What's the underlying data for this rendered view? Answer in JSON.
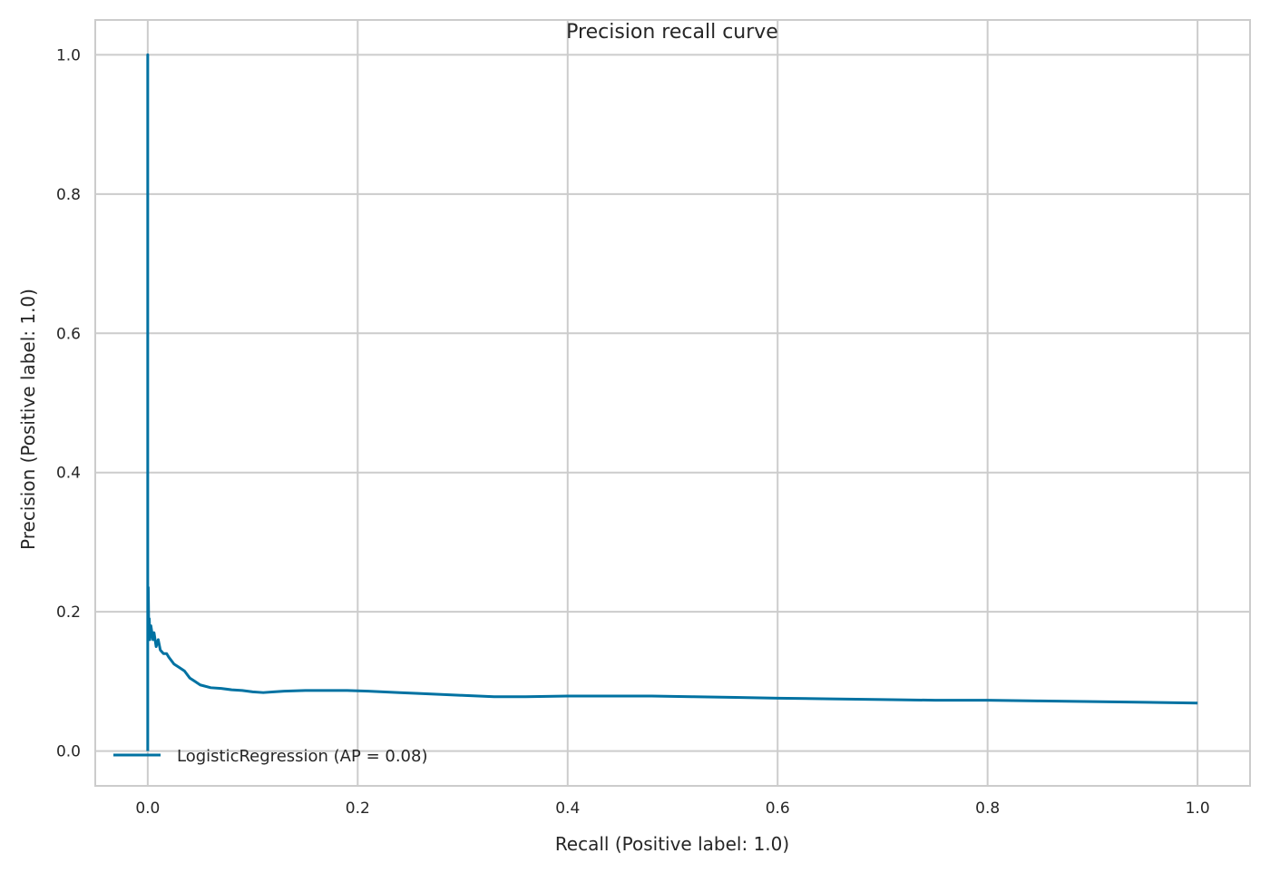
{
  "chart_data": {
    "type": "line",
    "title": "Precision recall curve",
    "xlabel": "Recall (Positive label: 1.0)",
    "ylabel": "Precision (Positive label: 1.0)",
    "xlim": [
      -0.05,
      1.05
    ],
    "ylim": [
      -0.05,
      1.05
    ],
    "xticks": [
      0.0,
      0.2,
      0.4,
      0.6,
      0.8,
      1.0
    ],
    "xtick_labels": [
      "0.0",
      "0.2",
      "0.4",
      "0.6",
      "0.8",
      "1.0"
    ],
    "yticks": [
      0.0,
      0.2,
      0.4,
      0.6,
      0.8,
      1.0
    ],
    "ytick_labels": [
      "0.0",
      "0.2",
      "0.4",
      "0.6",
      "0.8",
      "1.0"
    ],
    "grid": true,
    "legend_position": "lower-left",
    "series": [
      {
        "name": "LogisticRegression (AP = 0.08)",
        "color": "#0072a2",
        "x": [
          0.0,
          0.0,
          0.0,
          0.0,
          0.0,
          0.0005,
          0.001,
          0.0015,
          0.002,
          0.003,
          0.004,
          0.005,
          0.006,
          0.008,
          0.01,
          0.012,
          0.015,
          0.018,
          0.02,
          0.025,
          0.03,
          0.035,
          0.04,
          0.045,
          0.05,
          0.06,
          0.07,
          0.08,
          0.09,
          0.1,
          0.11,
          0.12,
          0.13,
          0.15,
          0.17,
          0.19,
          0.21,
          0.24,
          0.27,
          0.3,
          0.33,
          0.36,
          0.4,
          0.44,
          0.48,
          0.52,
          0.56,
          0.6,
          0.65,
          0.7,
          0.75,
          0.8,
          0.85,
          0.9,
          0.95,
          1.0
        ],
        "y": [
          0.0,
          1.0,
          0.5,
          0.23,
          0.2,
          0.235,
          0.17,
          0.19,
          0.16,
          0.18,
          0.17,
          0.16,
          0.17,
          0.15,
          0.16,
          0.145,
          0.14,
          0.14,
          0.135,
          0.125,
          0.12,
          0.115,
          0.105,
          0.1,
          0.095,
          0.091,
          0.09,
          0.088,
          0.087,
          0.085,
          0.084,
          0.085,
          0.086,
          0.087,
          0.087,
          0.087,
          0.086,
          0.084,
          0.082,
          0.08,
          0.078,
          0.078,
          0.079,
          0.079,
          0.079,
          0.078,
          0.077,
          0.076,
          0.075,
          0.074,
          0.073,
          0.073,
          0.072,
          0.071,
          0.07,
          0.069
        ]
      }
    ]
  }
}
